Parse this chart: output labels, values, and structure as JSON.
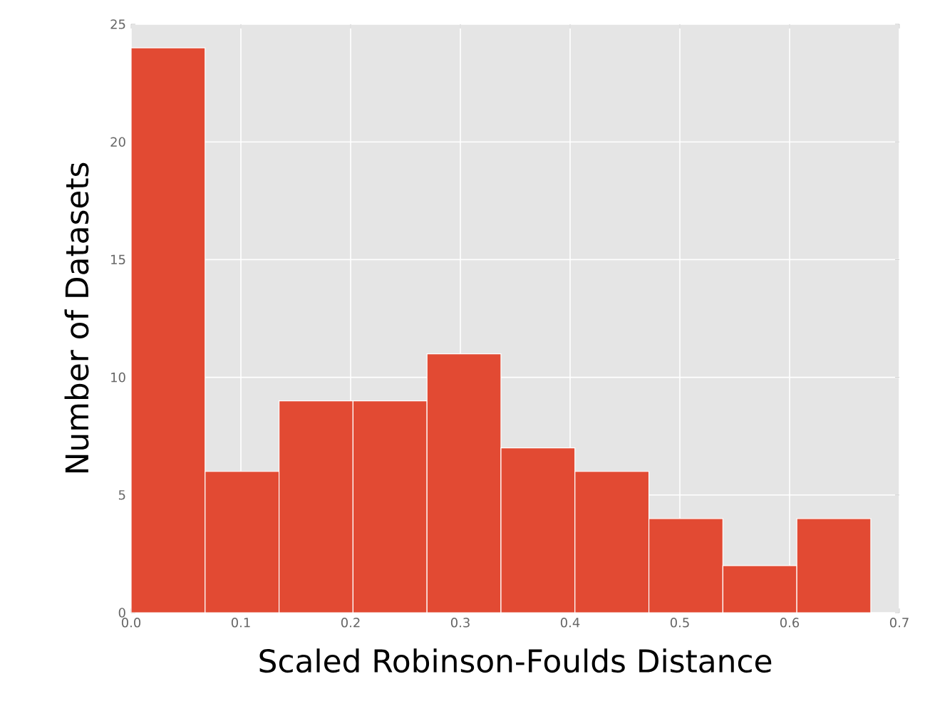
{
  "chart_data": {
    "type": "histogram",
    "xlabel": "Scaled Robinson-Foulds Distance",
    "ylabel": "Number of Datasets",
    "bins": [
      0,
      0.0674,
      0.1348,
      0.2022,
      0.2696,
      0.337,
      0.4044,
      0.4718,
      0.5392,
      0.6066,
      0.674
    ],
    "values": [
      24,
      6,
      9,
      9,
      11,
      7,
      6,
      4,
      2,
      4
    ],
    "color": "#e24a33",
    "xlim": [
      0,
      0.7
    ],
    "xticks": [
      {
        "value": 0,
        "label": "0.0"
      },
      0.1,
      0.2,
      0.3,
      0.4,
      0.5,
      0.6,
      0.7
    ],
    "ylim": [
      0,
      25
    ],
    "yticks": [
      0,
      5,
      10,
      15,
      20,
      25
    ],
    "grid": true
  }
}
